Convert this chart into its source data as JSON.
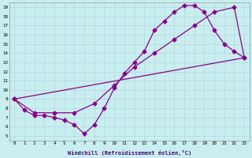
{
  "xlabel": "Windchill (Refroidissement éolien,°C)",
  "background_color": "#c8eef0",
  "line_color": "#8B008B",
  "grid_color": "#b0d8dc",
  "xlim": [
    -0.5,
    23.5
  ],
  "ylim": [
    4.5,
    19.5
  ],
  "xticks": [
    0,
    1,
    2,
    3,
    4,
    5,
    6,
    7,
    8,
    9,
    10,
    11,
    12,
    13,
    14,
    15,
    16,
    17,
    18,
    19,
    20,
    21,
    22,
    23
  ],
  "yticks": [
    5,
    6,
    7,
    8,
    9,
    10,
    11,
    12,
    13,
    14,
    15,
    16,
    17,
    18,
    19
  ],
  "line1_x": [
    0,
    1,
    2,
    3,
    4,
    5,
    6,
    7,
    8,
    9,
    10,
    11,
    12,
    13,
    14,
    15,
    16,
    17,
    18,
    19,
    20,
    21,
    22,
    23
  ],
  "line1_y": [
    9,
    7.8,
    7.2,
    7.2,
    7.0,
    6.7,
    6.2,
    5.2,
    6.2,
    8.0,
    10.2,
    11.8,
    13.0,
    14.2,
    16.5,
    17.5,
    18.5,
    19.2,
    19.2,
    18.5,
    16.5,
    15.0,
    14.2,
    13.5
  ],
  "line2_x": [
    0,
    2,
    4,
    6,
    8,
    10,
    12,
    14,
    16,
    18,
    20,
    22,
    23
  ],
  "line2_y": [
    9.0,
    7.5,
    7.5,
    7.5,
    8.5,
    10.5,
    12.5,
    14.0,
    15.5,
    17.0,
    18.5,
    19.0,
    13.5
  ],
  "line3_x": [
    0,
    23
  ],
  "line3_y": [
    9.0,
    13.5
  ],
  "marker": "D",
  "markersize": 2.5,
  "linewidth": 0.9
}
